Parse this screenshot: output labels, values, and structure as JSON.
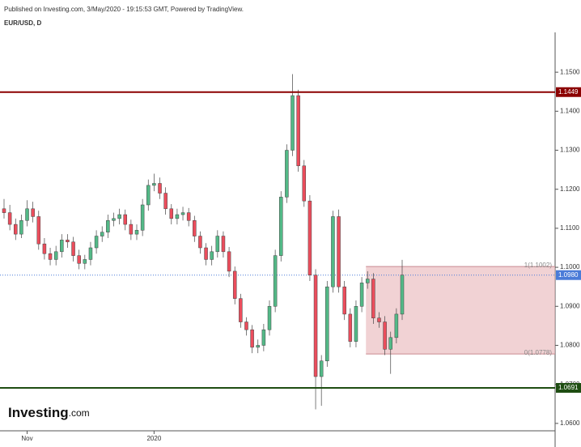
{
  "chart_data": {
    "type": "candlestick",
    "published": "Published on Investing.com, 3/May/2020 - 19:15:53 GMT, Powered by TradingView.",
    "symbol": "EUR/USD, D",
    "logo": {
      "name": "Investing",
      "suffix": ".com"
    },
    "categories": [
      null,
      null,
      null,
      null,
      "Nov",
      null,
      null,
      null,
      null,
      null,
      null,
      null,
      null,
      null,
      null,
      null,
      null,
      null,
      null,
      null,
      null,
      null,
      null,
      null,
      null,
      null,
      "2020",
      null,
      null,
      null,
      null,
      null,
      null,
      null,
      null,
      null,
      null,
      null,
      null,
      null,
      null,
      null,
      null,
      null,
      null,
      null,
      null,
      null,
      null,
      null,
      null,
      null,
      null,
      null,
      null,
      null,
      null,
      null,
      null,
      null,
      null,
      null,
      null,
      null,
      null,
      null,
      null,
      null,
      null,
      null
    ],
    "open": [
      1.115,
      1.114,
      1.111,
      1.1085,
      1.112,
      1.115,
      1.113,
      1.106,
      1.1035,
      1.102,
      1.104,
      1.107,
      1.1065,
      1.103,
      1.101,
      1.102,
      1.105,
      1.108,
      1.109,
      1.112,
      1.1125,
      1.1135,
      1.111,
      1.1085,
      1.1095,
      1.116,
      1.121,
      1.1215,
      1.119,
      1.115,
      1.1125,
      1.1135,
      1.114,
      1.112,
      1.108,
      1.105,
      1.102,
      1.104,
      1.108,
      1.104,
      1.099,
      1.092,
      1.086,
      1.084,
      1.0795,
      1.08,
      1.084,
      1.09,
      1.103,
      1.118,
      1.13,
      1.144,
      1.126,
      1.117,
      1.098,
      1.072,
      1.076,
      1.095,
      1.113,
      1.095,
      1.088,
      1.081,
      1.09,
      1.096,
      1.097,
      1.087,
      1.086,
      1.079,
      1.082,
      1.088
    ],
    "high": [
      1.1175,
      1.116,
      1.1125,
      1.1135,
      1.1172,
      1.1168,
      1.1145,
      1.1075,
      1.105,
      1.1055,
      1.1085,
      1.1085,
      1.1078,
      1.1045,
      1.1032,
      1.1065,
      1.1095,
      1.1105,
      1.1135,
      1.114,
      1.115,
      1.1148,
      1.1122,
      1.111,
      1.1175,
      1.1225,
      1.124,
      1.123,
      1.1205,
      1.1162,
      1.115,
      1.1155,
      1.1152,
      1.1132,
      1.1092,
      1.1062,
      1.1055,
      1.1095,
      1.1092,
      1.1052,
      1.1002,
      1.0932,
      1.0872,
      1.0852,
      1.0815,
      1.0855,
      1.0915,
      1.1045,
      1.1195,
      1.1315,
      1.1495,
      1.1455,
      1.1275,
      1.1185,
      1.0995,
      1.0775,
      1.0965,
      1.1145,
      1.1148,
      1.0965,
      1.0895,
      1.0915,
      1.0975,
      1.099,
      1.0985,
      1.0885,
      1.0875,
      1.0835,
      1.0895,
      1.1019
    ],
    "low": [
      1.1125,
      1.1095,
      1.107,
      1.1075,
      1.1105,
      1.1115,
      1.1045,
      1.102,
      1.1005,
      1.1005,
      1.1025,
      1.105,
      1.1015,
      1.0995,
      1.0995,
      1.1005,
      1.1035,
      1.1065,
      1.1075,
      1.1105,
      1.111,
      1.1095,
      1.107,
      1.107,
      1.108,
      1.1145,
      1.1195,
      1.1175,
      1.1135,
      1.111,
      1.111,
      1.112,
      1.1105,
      1.1065,
      1.1035,
      1.1005,
      1.1005,
      1.1025,
      1.1025,
      1.0975,
      1.0905,
      1.0845,
      1.0825,
      1.078,
      1.078,
      1.0785,
      1.0825,
      1.0885,
      1.1015,
      1.1165,
      1.1285,
      1.1245,
      1.1155,
      1.0965,
      1.0636,
      1.0645,
      1.0745,
      1.0935,
      1.0935,
      1.0865,
      1.0795,
      1.0795,
      1.0885,
      1.0945,
      1.0855,
      1.0845,
      1.0775,
      1.0727,
      1.0805,
      1.0865
    ],
    "close": [
      1.114,
      1.111,
      1.1085,
      1.112,
      1.115,
      1.113,
      1.106,
      1.1035,
      1.102,
      1.104,
      1.107,
      1.1065,
      1.103,
      1.101,
      1.102,
      1.105,
      1.108,
      1.109,
      1.112,
      1.1125,
      1.1135,
      1.111,
      1.1085,
      1.1095,
      1.116,
      1.121,
      1.1215,
      1.119,
      1.115,
      1.1125,
      1.1135,
      1.114,
      1.112,
      1.108,
      1.105,
      1.102,
      1.104,
      1.108,
      1.104,
      1.099,
      1.092,
      1.086,
      1.084,
      1.0795,
      1.08,
      1.084,
      1.09,
      1.103,
      1.118,
      1.13,
      1.144,
      1.126,
      1.117,
      1.098,
      1.072,
      1.076,
      1.095,
      1.113,
      1.095,
      1.088,
      1.081,
      1.09,
      1.096,
      1.097,
      1.087,
      1.086,
      1.079,
      1.082,
      1.088,
      1.098
    ],
    "up_color": "#53b987",
    "down_color": "#eb4d5c",
    "ylim": [
      1.0581,
      1.1602
    ],
    "yticks": [
      {
        "value": 1.06,
        "label": "1.0600"
      },
      {
        "value": 1.07,
        "label": "1.0700"
      },
      {
        "value": 1.08,
        "label": "1.0800"
      },
      {
        "value": 1.09,
        "label": "1.0900"
      },
      {
        "value": 1.1,
        "label": "1.1000"
      },
      {
        "value": 1.11,
        "label": "1.1100"
      },
      {
        "value": 1.12,
        "label": "1.1200"
      },
      {
        "value": 1.13,
        "label": "1.1300"
      },
      {
        "value": 1.14,
        "label": "1.1400"
      },
      {
        "value": 1.15,
        "label": "1.1500"
      }
    ],
    "hlines": [
      {
        "value": 1.1449,
        "color": "#8b0000"
      },
      {
        "value": 1.0691,
        "color": "#1e4d12"
      }
    ],
    "last_price": {
      "value": 1.098,
      "label": "1.0980",
      "color": "#4a7bd8"
    },
    "fib": {
      "levels": [
        {
          "value": 1.1002,
          "label": "1(1.1002)"
        },
        {
          "value": 1.0778,
          "label": "0(1.0778)"
        }
      ],
      "color": "#e8b4b8"
    }
  }
}
